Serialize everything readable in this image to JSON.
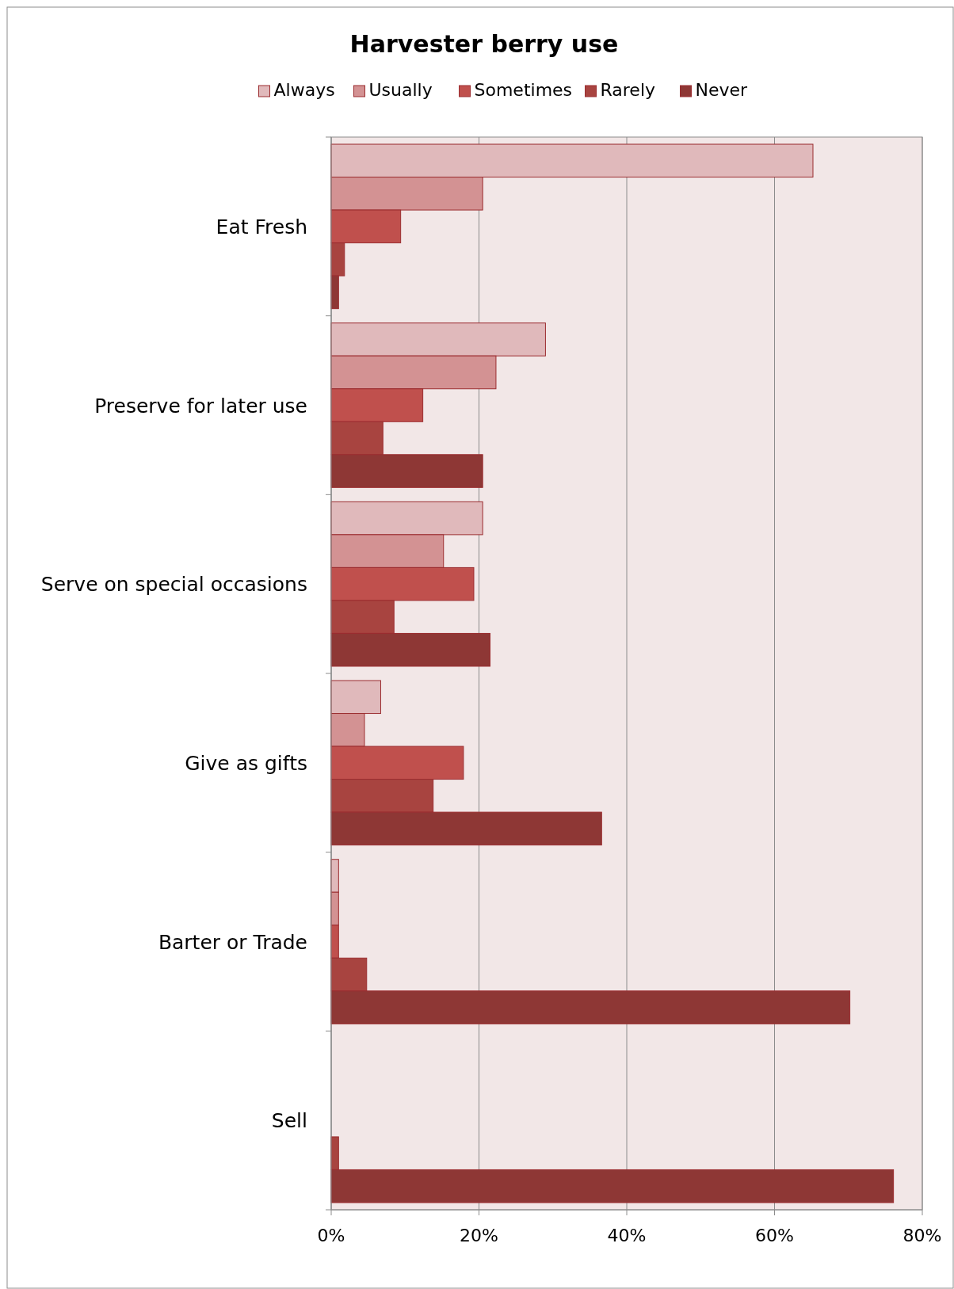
{
  "chart_data": {
    "type": "bar",
    "orientation": "horizontal",
    "title": "Harvester berry use",
    "categories": [
      "Eat Fresh",
      "Preserve for later use",
      "Serve on special occasions",
      "Give as gifts",
      "Barter or Trade",
      "Sell"
    ],
    "series": [
      {
        "name": "Always",
        "color": "#e0b9bb",
        "values": [
          65.2,
          29.0,
          20.5,
          6.7,
          1.0,
          0
        ]
      },
      {
        "name": "Usually",
        "color": "#d39293",
        "values": [
          20.5,
          22.3,
          15.2,
          4.5,
          1.0,
          0
        ]
      },
      {
        "name": "Sometimes",
        "color": "#c0504d",
        "values": [
          9.4,
          12.4,
          19.3,
          17.9,
          1.0,
          0
        ]
      },
      {
        "name": "Rarely",
        "color": "#a84440",
        "values": [
          1.8,
          7.0,
          8.5,
          13.8,
          4.8,
          1.0
        ]
      },
      {
        "name": "Never",
        "color": "#8e3735",
        "values": [
          1.0,
          20.5,
          21.5,
          36.6,
          70.2,
          76.1
        ]
      }
    ],
    "xlim": [
      0,
      80
    ],
    "xticks": [
      {
        "value": 0,
        "label": "0%"
      },
      {
        "value": 20,
        "label": "20%"
      },
      {
        "value": 40,
        "label": "40%"
      },
      {
        "value": 60,
        "label": "60%"
      },
      {
        "value": 80,
        "label": "80%"
      }
    ],
    "grid": "x",
    "legend": "top"
  }
}
